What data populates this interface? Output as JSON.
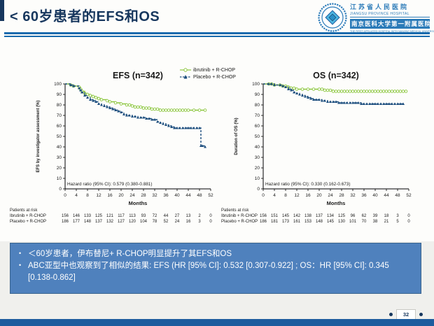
{
  "slide": {
    "title": "< 60岁患者的EFS和OS",
    "page_number": "32"
  },
  "logo": {
    "cn_name": "江苏省人民医院",
    "en_name": "JIANGSU PROVINCE HOSPITAL",
    "cn_affiliation": "南京医科大学第一附属医院",
    "en_affiliation": "THE FIRST AFFILIATED HOSPITAL WITH NANJING MEDICAL UNIVERSITY"
  },
  "legend": {
    "items": [
      {
        "label": "ibrutinib + R-CHOP",
        "color": "#8cc63e",
        "marker": "circle",
        "dash": "solid"
      },
      {
        "label": "Placebo + R-CHOP",
        "color": "#1d4e7e",
        "marker": "triangle",
        "dash": "dashed"
      }
    ]
  },
  "chart_data": [
    {
      "type": "line",
      "subtype": "kaplan-meier",
      "title": "EFS (n=342)",
      "xlabel": "Months",
      "ylabel": "EFS by investigator assessment (%)",
      "xlim": [
        0,
        52
      ],
      "ylim": [
        0,
        100
      ],
      "xtick_step": 4,
      "ytick_step": 10,
      "grid": false,
      "legend_position": "top-right",
      "annotation": "Hazard ratio (95% CI): 0.579 (0.380-0.881)",
      "series": [
        {
          "name": "ibrutinib + R-CHOP",
          "color": "#8cc63e",
          "dash": "solid",
          "marker": "circle",
          "points": [
            [
              0,
              100
            ],
            [
              2,
              99
            ],
            [
              3,
              98
            ],
            [
              5,
              97
            ],
            [
              5.5,
              95
            ],
            [
              6,
              93
            ],
            [
              7,
              91
            ],
            [
              8,
              90
            ],
            [
              9,
              89
            ],
            [
              10,
              88
            ],
            [
              11,
              87
            ],
            [
              12,
              86
            ],
            [
              13,
              85
            ],
            [
              15,
              84
            ],
            [
              16,
              83
            ],
            [
              18,
              82
            ],
            [
              20,
              81
            ],
            [
              22,
              80
            ],
            [
              23,
              80
            ],
            [
              24,
              79
            ],
            [
              25,
              78
            ],
            [
              26,
              78
            ],
            [
              27,
              78
            ],
            [
              28,
              77
            ],
            [
              29,
              77
            ],
            [
              30,
              77
            ],
            [
              31,
              76
            ],
            [
              32,
              76
            ],
            [
              33,
              76
            ],
            [
              34,
              75
            ],
            [
              35,
              75
            ],
            [
              36,
              75
            ],
            [
              37,
              75
            ],
            [
              38,
              75
            ],
            [
              39,
              75
            ],
            [
              40,
              75
            ],
            [
              41,
              75
            ],
            [
              42,
              75
            ],
            [
              43,
              75
            ],
            [
              44,
              75
            ],
            [
              46,
              75
            ],
            [
              48,
              75
            ],
            [
              50,
              75
            ]
          ]
        },
        {
          "name": "Placebo + R-CHOP",
          "color": "#1d4e7e",
          "dash": "dashed",
          "marker": "triangle",
          "points": [
            [
              0,
              100
            ],
            [
              2,
              99
            ],
            [
              3,
              98
            ],
            [
              5,
              96
            ],
            [
              5.5,
              94
            ],
            [
              6,
              92
            ],
            [
              7,
              89
            ],
            [
              8,
              87
            ],
            [
              9,
              85
            ],
            [
              10,
              84
            ],
            [
              11,
              83
            ],
            [
              12,
              81
            ],
            [
              13,
              80
            ],
            [
              14,
              79
            ],
            [
              15,
              78
            ],
            [
              16,
              77
            ],
            [
              17,
              76
            ],
            [
              18,
              75
            ],
            [
              19,
              74
            ],
            [
              20,
              73
            ],
            [
              21,
              71
            ],
            [
              22,
              70
            ],
            [
              23,
              70
            ],
            [
              24,
              69
            ],
            [
              25,
              69
            ],
            [
              26,
              68
            ],
            [
              27,
              68
            ],
            [
              28,
              68
            ],
            [
              29,
              67
            ],
            [
              30,
              67
            ],
            [
              31,
              66
            ],
            [
              32,
              66
            ],
            [
              33,
              64
            ],
            [
              34,
              63
            ],
            [
              35,
              62
            ],
            [
              36,
              61
            ],
            [
              37,
              60
            ],
            [
              38,
              59
            ],
            [
              39,
              58
            ],
            [
              40,
              58
            ],
            [
              41,
              58
            ],
            [
              42,
              58
            ],
            [
              43,
              58
            ],
            [
              44,
              58
            ],
            [
              45,
              58
            ],
            [
              46,
              58
            ],
            [
              47,
              58
            ],
            [
              48,
              58
            ],
            [
              48.5,
              41
            ],
            [
              49,
              41
            ],
            [
              50,
              40
            ]
          ]
        }
      ]
    },
    {
      "type": "line",
      "subtype": "kaplan-meier",
      "title": "OS (n=342)",
      "xlabel": "Months",
      "ylabel": "Duration of OS (%)",
      "xlim": [
        0,
        52
      ],
      "ylim": [
        0,
        100
      ],
      "xtick_step": 4,
      "ytick_step": 10,
      "grid": false,
      "legend_position": "shared",
      "annotation": "Hazard ratio (95% CI): 0.330 (0.162-0.673)",
      "series": [
        {
          "name": "ibrutinib + R-CHOP",
          "color": "#8cc63e",
          "dash": "solid",
          "marker": "circle",
          "points": [
            [
              0,
              100
            ],
            [
              2,
              100
            ],
            [
              3,
              100
            ],
            [
              4,
              99
            ],
            [
              6,
              99
            ],
            [
              7,
              98
            ],
            [
              8,
              98
            ],
            [
              9,
              97
            ],
            [
              10,
              96
            ],
            [
              11,
              96
            ],
            [
              12,
              95
            ],
            [
              14,
              95
            ],
            [
              16,
              95
            ],
            [
              18,
              95
            ],
            [
              20,
              95
            ],
            [
              21,
              95
            ],
            [
              22,
              94
            ],
            [
              23,
              94
            ],
            [
              24,
              94
            ],
            [
              25,
              93
            ],
            [
              26,
              93
            ],
            [
              27,
              93
            ],
            [
              28,
              93
            ],
            [
              29,
              93
            ],
            [
              30,
              93
            ],
            [
              31,
              93
            ],
            [
              32,
              93
            ],
            [
              33,
              93
            ],
            [
              34,
              93
            ],
            [
              35,
              93
            ],
            [
              36,
              93
            ],
            [
              37,
              93
            ],
            [
              38,
              93
            ],
            [
              39,
              93
            ],
            [
              40,
              93
            ],
            [
              41,
              93
            ],
            [
              42,
              93
            ],
            [
              43,
              93
            ],
            [
              44,
              93
            ],
            [
              45,
              93
            ],
            [
              46,
              93
            ],
            [
              47,
              93
            ],
            [
              48,
              93
            ],
            [
              49,
              93
            ],
            [
              50,
              93
            ],
            [
              51,
              93
            ]
          ]
        },
        {
          "name": "Placebo + R-CHOP",
          "color": "#1d4e7e",
          "dash": "dashed",
          "marker": "triangle",
          "points": [
            [
              0,
              100
            ],
            [
              2,
              100
            ],
            [
              3,
              100
            ],
            [
              4,
              99
            ],
            [
              6,
              99
            ],
            [
              7,
              98
            ],
            [
              8,
              97
            ],
            [
              9,
              95
            ],
            [
              10,
              94
            ],
            [
              11,
              92
            ],
            [
              12,
              91
            ],
            [
              13,
              90
            ],
            [
              14,
              89
            ],
            [
              15,
              88
            ],
            [
              16,
              87
            ],
            [
              17,
              86
            ],
            [
              18,
              85
            ],
            [
              19,
              85
            ],
            [
              20,
              85
            ],
            [
              21,
              84
            ],
            [
              22,
              84
            ],
            [
              23,
              83
            ],
            [
              24,
              83
            ],
            [
              25,
              83
            ],
            [
              26,
              83
            ],
            [
              27,
              82
            ],
            [
              28,
              82
            ],
            [
              29,
              82
            ],
            [
              30,
              82
            ],
            [
              31,
              82
            ],
            [
              32,
              82
            ],
            [
              33,
              82
            ],
            [
              34,
              82
            ],
            [
              35,
              81
            ],
            [
              36,
              81
            ],
            [
              37,
              81
            ],
            [
              38,
              81
            ],
            [
              39,
              81
            ],
            [
              40,
              81
            ],
            [
              41,
              81
            ],
            [
              42,
              81
            ],
            [
              43,
              81
            ],
            [
              44,
              81
            ],
            [
              45,
              81
            ],
            [
              46,
              81
            ],
            [
              47,
              81
            ],
            [
              48,
              81
            ],
            [
              49,
              81
            ],
            [
              50,
              81
            ]
          ]
        }
      ]
    }
  ],
  "risk_tables": [
    {
      "heading": "Patients at risk",
      "months": [
        0,
        4,
        8,
        12,
        16,
        20,
        24,
        28,
        32,
        36,
        40,
        44,
        48,
        52
      ],
      "rows": [
        {
          "label": "Ibrutinib + R-CHOP",
          "counts": [
            156,
            146,
            133,
            125,
            121,
            117,
            113,
            93,
            72,
            44,
            27,
            13,
            2,
            0
          ]
        },
        {
          "label": "Placebo + R-CHOP",
          "counts": [
            186,
            177,
            148,
            137,
            132,
            127,
            120,
            104,
            78,
            52,
            24,
            16,
            3,
            0
          ]
        }
      ]
    },
    {
      "heading": "Patients at risk",
      "months": [
        0,
        4,
        8,
        12,
        16,
        20,
        24,
        28,
        32,
        36,
        40,
        44,
        48,
        52
      ],
      "rows": [
        {
          "label": "Ibrutinib + R-CHOP",
          "counts": [
            156,
            151,
            145,
            142,
            138,
            137,
            134,
            125,
            96,
            62,
            39,
            18,
            3,
            0
          ]
        },
        {
          "label": "Placebo + R-CHOP",
          "counts": [
            186,
            181,
            173,
            161,
            153,
            148,
            145,
            130,
            101,
            70,
            38,
            21,
            5,
            0
          ]
        }
      ]
    }
  ],
  "summary_box": {
    "bullets": [
      "＜60岁患者，伊布替尼+ R-CHOP明显提升了其EFS和OS",
      "ABC亚型中也观察到了相似的结果: EFS (HR [95% CI]: 0.532 [0.307-0.922] ; OS：HR [95% CI]: 0.345 [0.138-0.862]"
    ]
  },
  "colors": {
    "title_navy": "#17375e",
    "divider_blue": "#1a6cae",
    "summary_fill": "#4f81bd",
    "summary_border": "#3a648f",
    "bottom_bar": "#1d5c9e",
    "series_green": "#8cc63e",
    "series_navy": "#1d4e7e",
    "logo_blue": "#2a7ab8"
  }
}
